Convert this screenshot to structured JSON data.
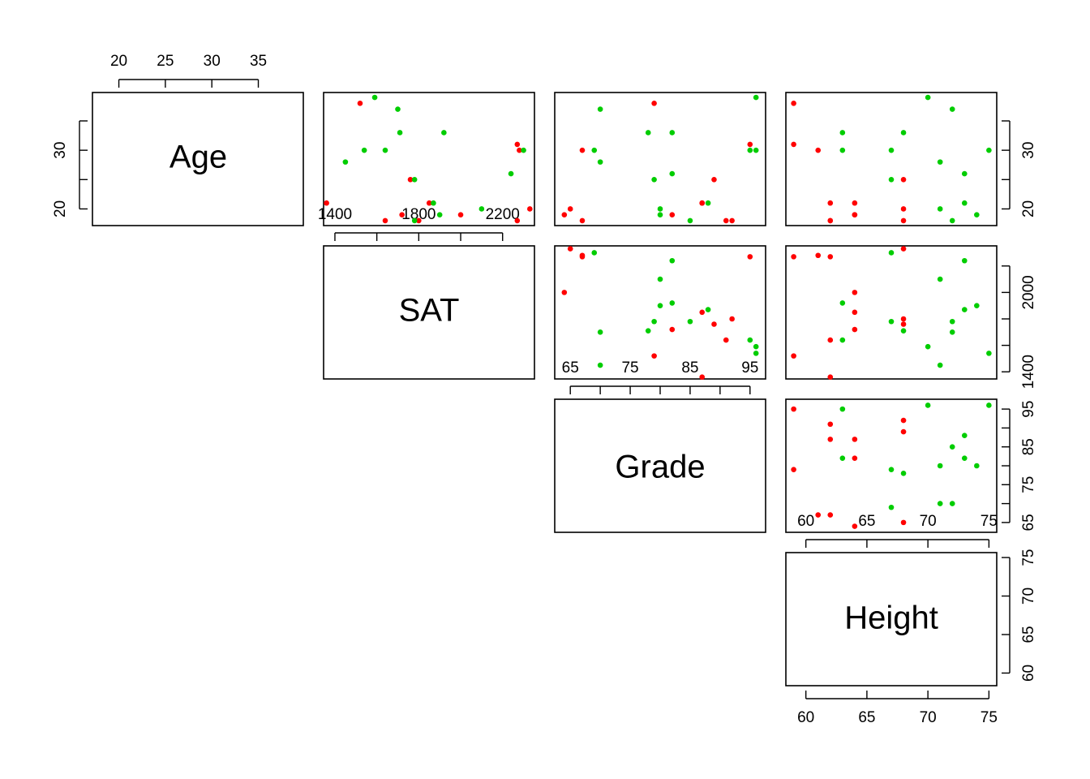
{
  "chart_data": {
    "type": "scatter",
    "variables": [
      "Age",
      "SAT",
      "Grade",
      "Height"
    ],
    "colors": {
      "red": "#ff0000",
      "green": "#00cd00"
    },
    "ranges": {
      "Age": [
        17.16,
        39.84
      ],
      "SAT": [
        1346.0,
        2352.0
      ],
      "Grade": [
        62.4,
        97.6
      ],
      "Height": [
        58.36,
        75.64
      ]
    },
    "ticks": {
      "Age": [
        20,
        25,
        30,
        35
      ],
      "SAT": [
        1400,
        1600,
        1800,
        2000,
        2200
      ],
      "Grade": [
        65,
        70,
        75,
        80,
        85,
        90,
        95
      ],
      "Height": [
        60,
        65,
        70,
        75
      ]
    },
    "tick_labels": {
      "Age_top": [
        "20",
        "25",
        "30",
        "35"
      ],
      "Age_right": [
        "20",
        "30"
      ],
      "SAT_top": [
        "1400",
        "1800",
        "2200"
      ],
      "SAT_right": [
        "1400",
        "2000"
      ],
      "Grade_top": [
        "65",
        "75",
        "85",
        "95"
      ],
      "Grade_right": [
        "65",
        "75",
        "85",
        "95"
      ],
      "Height_top": [
        "60",
        "65",
        "70",
        "75"
      ],
      "Height_right": [
        "60",
        "65",
        "70",
        "75"
      ],
      "Height_bottom": [
        "60",
        "65",
        "70",
        "75"
      ]
    },
    "points": [
      {
        "Age": 21,
        "SAT": 1360,
        "Grade": 87,
        "Height": 62,
        "group": "red"
      },
      {
        "Age": 38,
        "SAT": 1520,
        "Grade": 79,
        "Height": 59,
        "group": "red"
      },
      {
        "Age": 18,
        "SAT": 1640,
        "Grade": 91,
        "Height": 62,
        "group": "red"
      },
      {
        "Age": 19,
        "SAT": 1720,
        "Grade": 82,
        "Height": 64,
        "group": "red"
      },
      {
        "Age": 25,
        "SAT": 1760,
        "Grade": 89,
        "Height": 68,
        "group": "red"
      },
      {
        "Age": 18,
        "SAT": 1800,
        "Grade": 92,
        "Height": 68,
        "group": "red"
      },
      {
        "Age": 21,
        "SAT": 1850,
        "Grade": 87,
        "Height": 64,
        "group": "red"
      },
      {
        "Age": 19,
        "SAT": 2000,
        "Grade": 64,
        "Height": 64,
        "group": "red"
      },
      {
        "Age": 31,
        "SAT": 2270,
        "Grade": 95,
        "Height": 59,
        "group": "red"
      },
      {
        "Age": 30,
        "SAT": 2280,
        "Grade": 67,
        "Height": 61,
        "group": "red"
      },
      {
        "Age": 18,
        "SAT": 2270,
        "Grade": 67,
        "Height": 62,
        "group": "red"
      },
      {
        "Age": 20,
        "SAT": 2330,
        "Grade": 65,
        "Height": 68,
        "group": "red"
      },
      {
        "Age": 30,
        "SAT": 1540,
        "Grade": 96,
        "Height": 75,
        "group": "green"
      },
      {
        "Age": 39,
        "SAT": 1590,
        "Grade": 96,
        "Height": 70,
        "group": "green"
      },
      {
        "Age": 28,
        "SAT": 1450,
        "Grade": 70,
        "Height": 71,
        "group": "green"
      },
      {
        "Age": 30,
        "SAT": 1640,
        "Grade": 95,
        "Height": 63,
        "group": "green"
      },
      {
        "Age": 37,
        "SAT": 1700,
        "Grade": 70,
        "Height": 72,
        "group": "green"
      },
      {
        "Age": 33,
        "SAT": 1710,
        "Grade": 78,
        "Height": 68,
        "group": "green"
      },
      {
        "Age": 25,
        "SAT": 1780,
        "Grade": 79,
        "Height": 67,
        "group": "green"
      },
      {
        "Age": 18,
        "SAT": 1780,
        "Grade": 85,
        "Height": 72,
        "group": "green"
      },
      {
        "Age": 21,
        "SAT": 1870,
        "Grade": 88,
        "Height": 73,
        "group": "green"
      },
      {
        "Age": 19,
        "SAT": 1900,
        "Grade": 80,
        "Height": 74,
        "group": "green"
      },
      {
        "Age": 33,
        "SAT": 1920,
        "Grade": 82,
        "Height": 63,
        "group": "green"
      },
      {
        "Age": 20,
        "SAT": 2100,
        "Grade": 80,
        "Height": 71,
        "group": "green"
      },
      {
        "Age": 26,
        "SAT": 2240,
        "Grade": 82,
        "Height": 73,
        "group": "green"
      },
      {
        "Age": 30,
        "SAT": 2300,
        "Grade": 69,
        "Height": 67,
        "group": "green"
      }
    ]
  }
}
